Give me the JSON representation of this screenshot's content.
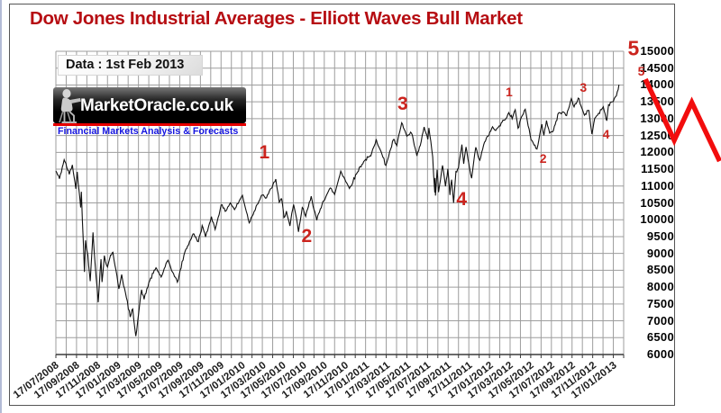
{
  "title": "Dow Jones Industrial Averages  - Elliott Waves Bull Market",
  "data_label": "Data : 1st Feb 2013",
  "logo": {
    "name": "MarketOracle.co.uk",
    "tagline": "Financial Markets Analysis & Forecasts"
  },
  "colors": {
    "title": "#b60d12",
    "wave": "#cb241e",
    "arrow": "#f20d0d",
    "line": "#111111",
    "grid": "#9d9d9d",
    "axis": "#3a3a3a",
    "logo_stripe": "#e60000",
    "tagline": "#1515e0"
  },
  "y_axis": {
    "ticks": [
      "15000",
      "14500",
      "14000",
      "13500",
      "13000",
      "12500",
      "12000",
      "11500",
      "11000",
      "10500",
      "10000",
      "9500",
      "9000",
      "8500",
      "8000",
      "7500",
      "7000",
      "6500",
      "6000"
    ]
  },
  "x_axis": {
    "ticks": [
      "17/07/2008",
      "17/09/2008",
      "17/11/2008",
      "17/01/2009",
      "17/03/2009",
      "17/05/2009",
      "17/07/2009",
      "17/09/2009",
      "17/11/2009",
      "17/01/2010",
      "17/03/2010",
      "17/05/2010",
      "17/07/2010",
      "17/09/2010",
      "17/11/2010",
      "17/01/2011",
      "17/03/2011",
      "17/05/2011",
      "17/07/2011",
      "17/09/2011",
      "17/11/2011",
      "17/01/2012",
      "17/03/2012",
      "17/05/2012",
      "17/07/2012",
      "17/09/2012",
      "17/11/2012",
      "17/01/2013"
    ]
  },
  "chart_data": {
    "type": "line",
    "title": "Dow Jones Industrial Averages - Elliott Waves Bull Market",
    "x_unit": "months since 17/07/2008",
    "ylim": [
      6000,
      15000
    ],
    "y_step": 500,
    "months_span": 55,
    "x_tick_every_months": 2,
    "grid": true,
    "series": [
      {
        "name": "DJIA",
        "points": [
          [
            0,
            11447
          ],
          [
            0.35,
            11215
          ],
          [
            0.8,
            11782
          ],
          [
            1.3,
            11350
          ],
          [
            1.6,
            11628
          ],
          [
            1.93,
            10918
          ],
          [
            2.07,
            11422
          ],
          [
            2.4,
            10365
          ],
          [
            2.47,
            10831
          ],
          [
            2.77,
            8451
          ],
          [
            2.87,
            9387
          ],
          [
            3.1,
            8950
          ],
          [
            3.33,
            8176
          ],
          [
            3.6,
            9625
          ],
          [
            3.8,
            8700
          ],
          [
            4.1,
            7552
          ],
          [
            4.37,
            8829
          ],
          [
            4.47,
            8149
          ],
          [
            4.7,
            8934
          ],
          [
            5,
            8600
          ],
          [
            5.3,
            8950
          ],
          [
            5.53,
            9034
          ],
          [
            6.1,
            7949
          ],
          [
            6.37,
            8375
          ],
          [
            7.2,
            7114
          ],
          [
            7.45,
            7350
          ],
          [
            7.74,
            6547
          ],
          [
            8.3,
            7924
          ],
          [
            8.55,
            7640
          ],
          [
            9,
            8131
          ],
          [
            9.7,
            8575
          ],
          [
            10.2,
            8300
          ],
          [
            10.87,
            8799
          ],
          [
            11.3,
            8450
          ],
          [
            11.77,
            8146
          ],
          [
            12.5,
            9050
          ],
          [
            13.3,
            9580
          ],
          [
            13.8,
            9350
          ],
          [
            14.17,
            9829
          ],
          [
            14.5,
            9487
          ],
          [
            15.07,
            10092
          ],
          [
            15.43,
            9712
          ],
          [
            16,
            10437
          ],
          [
            16.4,
            10250
          ],
          [
            16.9,
            10501
          ],
          [
            17.3,
            10300
          ],
          [
            18.07,
            10725
          ],
          [
            18.73,
            9908
          ],
          [
            19.4,
            10400
          ],
          [
            20,
            10733
          ],
          [
            20.4,
            10650
          ],
          [
            21.3,
            11205
          ],
          [
            21.63,
            10520
          ],
          [
            21.87,
            10620
          ],
          [
            22.1,
            10068
          ],
          [
            22.33,
            10258
          ],
          [
            22.67,
            9816
          ],
          [
            23.03,
            10450
          ],
          [
            23.4,
            9870
          ],
          [
            23.5,
            9640
          ],
          [
            23.87,
            10363
          ],
          [
            24.2,
            10100
          ],
          [
            24.73,
            10698
          ],
          [
            25.27,
            9985
          ],
          [
            25.87,
            10544
          ],
          [
            26.6,
            10944
          ],
          [
            27,
            10750
          ],
          [
            27.6,
            11444
          ],
          [
            28,
            11200
          ],
          [
            28.43,
            10929
          ],
          [
            29.47,
            11578
          ],
          [
            30,
            11787
          ],
          [
            30.5,
            11892
          ],
          [
            31.03,
            12391
          ],
          [
            31.4,
            12090
          ],
          [
            31.97,
            11613
          ],
          [
            32.7,
            12380
          ],
          [
            33.03,
            12201
          ],
          [
            33.5,
            12876
          ],
          [
            34,
            12479
          ],
          [
            34.45,
            12570
          ],
          [
            34.97,
            11898
          ],
          [
            35.3,
            12200
          ],
          [
            35.67,
            12753
          ],
          [
            36.03,
            12385
          ],
          [
            36.13,
            12724
          ],
          [
            36.5,
            11867
          ],
          [
            36.7,
            10810
          ],
          [
            36.73,
            11240
          ],
          [
            36.77,
            10720
          ],
          [
            36.93,
            11482
          ],
          [
            37.07,
            10818
          ],
          [
            37.45,
            11614
          ],
          [
            37.74,
            10992
          ],
          [
            37.97,
            11509
          ],
          [
            38.17,
            10734
          ],
          [
            38.33,
            11190
          ],
          [
            38.53,
            10500
          ],
          [
            38.75,
            11433
          ],
          [
            39,
            11541
          ],
          [
            39.33,
            12231
          ],
          [
            39.5,
            11658
          ],
          [
            39.73,
            12160
          ],
          [
            40.27,
            11232
          ],
          [
            40.67,
            12150
          ],
          [
            41.07,
            11766
          ],
          [
            41.43,
            12218
          ],
          [
            42.3,
            12759
          ],
          [
            42.6,
            12650
          ],
          [
            43.4,
            12952
          ],
          [
            43.87,
            13178
          ],
          [
            44.2,
            13000
          ],
          [
            44.5,
            13264
          ],
          [
            44.77,
            12716
          ],
          [
            45.1,
            13050
          ],
          [
            45.47,
            13280
          ],
          [
            46.03,
            12369
          ],
          [
            46.5,
            12119
          ],
          [
            46.6,
            12101
          ],
          [
            47.07,
            12837
          ],
          [
            47.27,
            12503
          ],
          [
            47.53,
            12944
          ],
          [
            47.83,
            12573
          ],
          [
            48.2,
            12650
          ],
          [
            48.7,
            13169
          ],
          [
            49.13,
            13204
          ],
          [
            49.47,
            13091
          ],
          [
            49.93,
            13593
          ],
          [
            50.2,
            13350
          ],
          [
            50.6,
            13610
          ],
          [
            51.2,
            13102
          ],
          [
            51.63,
            13245
          ],
          [
            51.93,
            12542
          ],
          [
            52.2,
            13010
          ],
          [
            53.03,
            13351
          ],
          [
            53.37,
            12938
          ],
          [
            53.53,
            13413
          ],
          [
            54,
            13511
          ],
          [
            54.2,
            13649
          ],
          [
            54.47,
            13861
          ],
          [
            54.55,
            14010
          ]
        ]
      }
    ],
    "annotations": {
      "waves": [
        {
          "label": "1",
          "m": 20.2,
          "v": 11980,
          "size": "big"
        },
        {
          "label": "2",
          "m": 24.3,
          "v": 9500,
          "size": "big"
        },
        {
          "label": "3",
          "m": 33.6,
          "v": 13420,
          "size": "big"
        },
        {
          "label": "4",
          "m": 39.3,
          "v": 10590,
          "size": "big"
        },
        {
          "label": "1",
          "m": 43.9,
          "v": 13800,
          "size": "small"
        },
        {
          "label": "2",
          "m": 47.2,
          "v": 11820,
          "size": "small"
        },
        {
          "label": "3",
          "m": 51.1,
          "v": 13930,
          "size": "small"
        },
        {
          "label": "4",
          "m": 53.3,
          "v": 12540,
          "size": "small"
        },
        {
          "label": "5",
          "m": 55.95,
          "v": 15080,
          "size": "huge"
        },
        {
          "label": "5",
          "m": 56.7,
          "v": 14400,
          "size": "small"
        }
      ],
      "projection_zigzag": [
        [
          57.1,
          14170
        ],
        [
          59.9,
          12360
        ],
        [
          61.6,
          13480
        ],
        [
          64.3,
          11740
        ]
      ]
    }
  }
}
